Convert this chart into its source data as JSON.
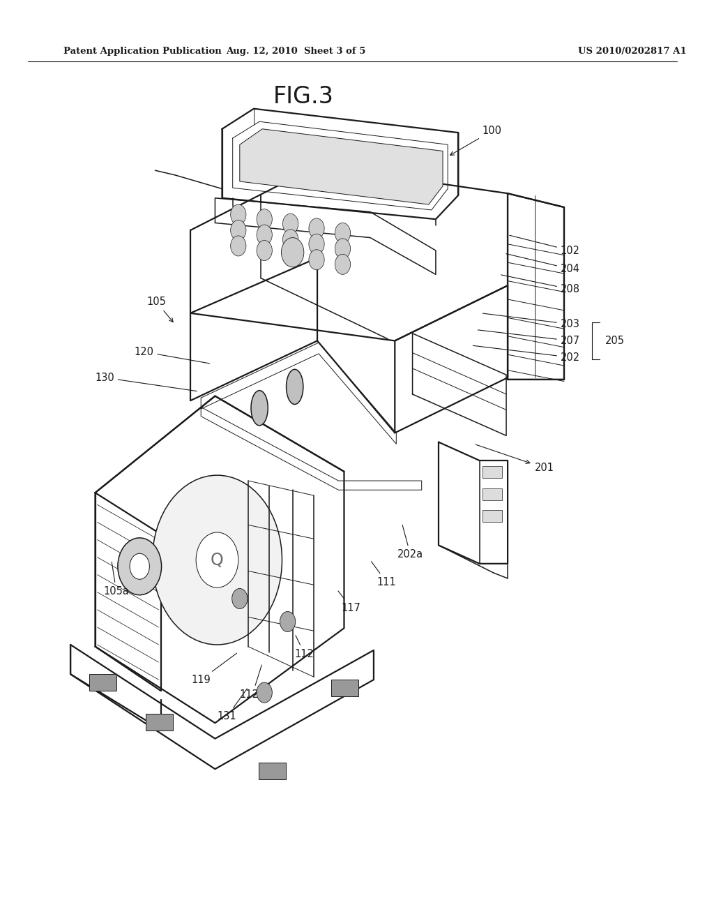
{
  "fig_label": "FIG.3",
  "header_left": "Patent Application Publication",
  "header_center": "Aug. 12, 2010  Sheet 3 of 5",
  "header_right": "US 2010/0202817 A1",
  "bg_color": "#ffffff",
  "line_color": "#1a1a1a",
  "figsize": [
    10.24,
    13.2
  ],
  "dpi": 100
}
